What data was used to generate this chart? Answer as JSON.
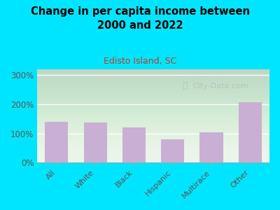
{
  "title": "Change in per capita income between\n2000 and 2022",
  "subtitle": "Edisto Island, SC",
  "categories": [
    "All",
    "White",
    "Black",
    "Hispanic",
    "Multirace",
    "Other"
  ],
  "values": [
    140,
    138,
    120,
    80,
    105,
    207
  ],
  "bar_color": "#c9afd4",
  "background_outer": "#00e5ff",
  "title_color": "#000000",
  "subtitle_color": "#c0392b",
  "axis_label_color": "#555555",
  "ylim": [
    0,
    320
  ],
  "yticks": [
    0,
    100,
    200,
    300
  ],
  "watermark": "City-Data.com",
  "watermark_color": "#b8b8b8"
}
